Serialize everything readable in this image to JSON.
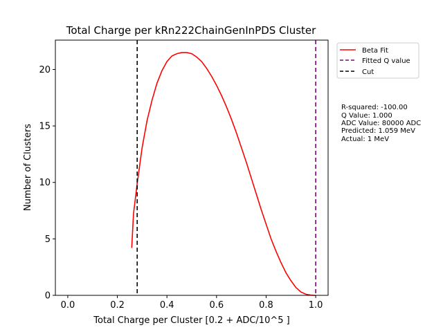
{
  "chart_data": {
    "type": "line",
    "title": "Total Charge per kRn222ChainGenInPDS Cluster",
    "xlabel": "Total Charge per Cluster [0.2 + ADC/10^5 ]",
    "ylabel": "Number of Clusters",
    "xlim": [
      -0.05,
      1.05
    ],
    "ylim": [
      0,
      22.6
    ],
    "xticks": [
      0.0,
      0.2,
      0.4,
      0.6,
      0.8,
      1.0
    ],
    "xtick_labels": [
      "0.0",
      "0.2",
      "0.4",
      "0.6",
      "0.8",
      "1.0"
    ],
    "yticks": [
      0,
      5,
      10,
      15,
      20
    ],
    "ytick_labels": [
      "0",
      "5",
      "10",
      "15",
      "20"
    ],
    "grid": false,
    "legend_position": "outside-top-right",
    "series": [
      {
        "name": "Beta Fit",
        "color": "#ff0000",
        "style": "solid",
        "x": [
          0.258,
          0.265,
          0.28,
          0.3,
          0.32,
          0.34,
          0.36,
          0.38,
          0.4,
          0.42,
          0.44,
          0.46,
          0.48,
          0.5,
          0.52,
          0.54,
          0.56,
          0.58,
          0.6,
          0.62,
          0.64,
          0.66,
          0.68,
          0.7,
          0.72,
          0.74,
          0.76,
          0.78,
          0.8,
          0.82,
          0.84,
          0.86,
          0.88,
          0.9,
          0.92,
          0.94,
          0.96,
          0.98,
          0.995,
          1.0
        ],
        "y": [
          4.2,
          7.2,
          9.9,
          13.1,
          15.5,
          17.3,
          18.8,
          19.9,
          20.7,
          21.2,
          21.4,
          21.5,
          21.5,
          21.4,
          21.1,
          20.7,
          20.1,
          19.4,
          18.6,
          17.7,
          16.7,
          15.6,
          14.4,
          13.1,
          11.8,
          10.4,
          9.0,
          7.6,
          6.3,
          5.0,
          3.9,
          2.9,
          2.0,
          1.3,
          0.7,
          0.3,
          0.1,
          0.02,
          0.0,
          0.0
        ]
      }
    ],
    "vlines": [
      {
        "name": "Fitted Q value",
        "x": 1.0,
        "color": "#800080",
        "style": "dashed"
      },
      {
        "name": "Cut",
        "x": 0.28,
        "color": "#000000",
        "style": "dashed"
      }
    ],
    "info_box": [
      "R-squared: -100.00",
      "Q Value: 1.000",
      "ADC Value: 80000 ADC",
      "Predicted: 1.059 MeV",
      "Actual: 1 MeV"
    ]
  }
}
